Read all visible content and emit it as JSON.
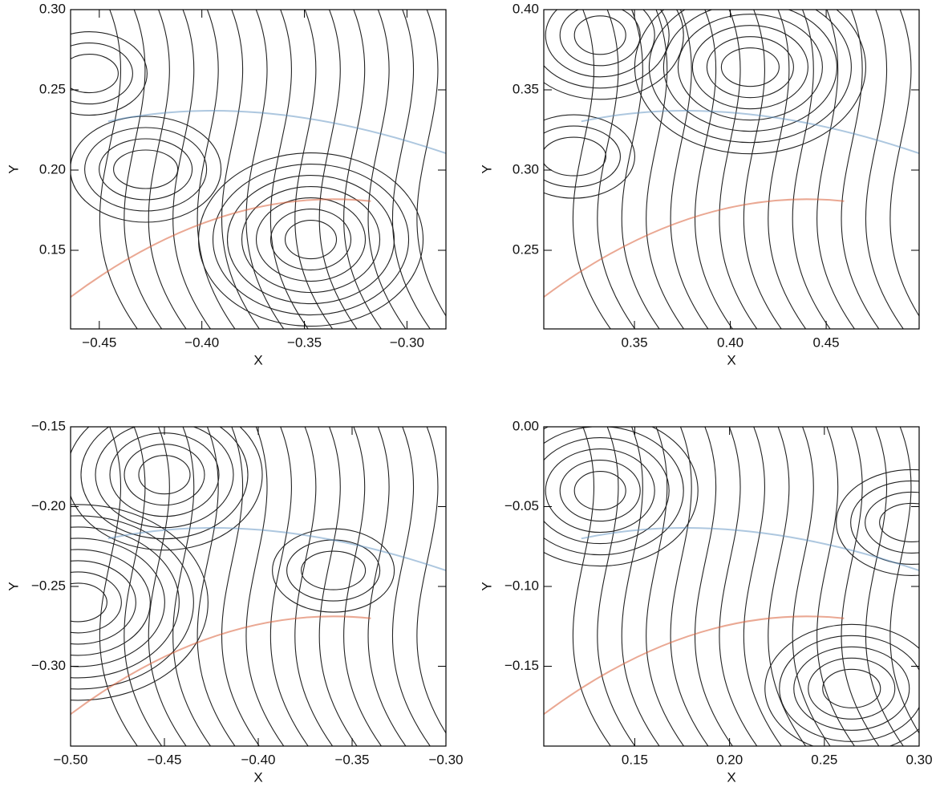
{
  "chart_data": [
    {
      "type": "contour",
      "xlabel": "X",
      "ylabel": "Y",
      "xlim": [
        -0.464,
        -0.281
      ],
      "ylim": [
        0.101,
        0.3
      ],
      "xticks": [
        {
          "value": -0.45,
          "label": "−0.45"
        },
        {
          "value": -0.4,
          "label": "−0.40"
        },
        {
          "value": -0.35,
          "label": "−0.35"
        },
        {
          "value": -0.3,
          "label": "−0.30"
        }
      ],
      "yticks": [
        0.15,
        {
          "value": 0.2,
          "label": "0.20"
        },
        0.25,
        {
          "value": 0.3,
          "label": "0.30"
        }
      ]
    },
    {
      "type": "contour",
      "xlabel": "X",
      "ylabel": "Y",
      "xlim": [
        0.3027,
        0.4985
      ],
      "ylim": [
        0.201,
        0.4
      ],
      "xticks": [
        0.35,
        {
          "value": 0.4,
          "label": "0.40"
        },
        0.45
      ],
      "yticks": [
        0.25,
        {
          "value": 0.3,
          "label": "0.30"
        },
        0.35,
        {
          "value": 0.4,
          "label": "0.40"
        }
      ]
    },
    {
      "type": "contour",
      "xlabel": "X",
      "ylabel": "Y",
      "xlim": [
        -0.5,
        -0.3
      ],
      "ylim": [
        -0.35,
        -0.15
      ],
      "xticks": [
        {
          "value": -0.5,
          "label": "−0.50"
        },
        {
          "value": -0.45,
          "label": "−0.45"
        },
        {
          "value": -0.4,
          "label": "−0.40"
        },
        {
          "value": -0.35,
          "label": "−0.35"
        },
        {
          "value": -0.3,
          "label": "−0.30"
        }
      ],
      "yticks": [
        {
          "value": -0.15,
          "label": "−0.15"
        },
        {
          "value": -0.2,
          "label": "−0.20"
        },
        {
          "value": -0.25,
          "label": "−0.25"
        },
        {
          "value": -0.3,
          "label": "−0.30"
        }
      ]
    },
    {
      "type": "contour",
      "xlabel": "X",
      "ylabel": "Y",
      "xlim": [
        0.102,
        0.3
      ],
      "ylim": [
        -0.2,
        0.0
      ],
      "xticks": [
        0.15,
        {
          "value": 0.2,
          "label": "0.20"
        },
        0.25,
        {
          "value": 0.3,
          "label": "0.30"
        }
      ],
      "yticks": [
        {
          "value": 0.0,
          "label": "0.00"
        },
        {
          "value": -0.05,
          "label": "−0.05"
        },
        {
          "value": -0.1,
          "label": "−0.10"
        },
        {
          "value": -0.15,
          "label": "−0.15"
        }
      ]
    }
  ]
}
